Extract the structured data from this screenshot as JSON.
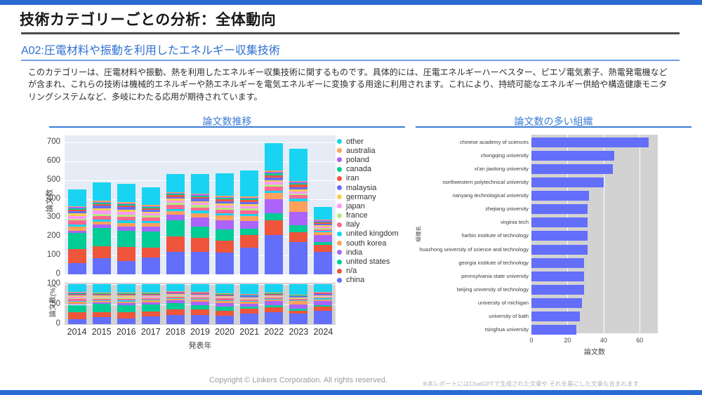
{
  "page": {
    "title": "技術カテゴリーごとの分析：全体動向",
    "subtitle": "A02:圧電材料や振動を利用したエネルギー収集技術",
    "description": "このカテゴリーは、圧電材料や振動、熱を利用したエネルギー収集技術に関するものです。具体的には、圧電エネルギーハーベスター、ピエゾ電気素子、熱電発電機などが含まれ、これらの技術は機械的エネルギーや熱エネルギーを電気エネルギーに変換する用途に利用されます。これにより、持続可能なエネルギー供給や構造健康モニタリングシステムなど、多岐にわたる応用が期待されています。",
    "footer_copyright": "Copyright © Linkers Corporation. All rights reserved.",
    "footer_note": "※本レポートにはChatGPTで生成された文章や それを基にした文章も含まれます",
    "accent_color": "#2a6ad2",
    "chart_title_color": "#3a7bd5"
  },
  "chart_data": [
    {
      "type": "bar",
      "stacked": true,
      "title": "論文数推移",
      "xlabel": "発表年",
      "ylabel": "論文数",
      "percent_ylabel": "論文数(%)",
      "ylim": [
        0,
        700
      ],
      "yticks": [
        0,
        100,
        200,
        300,
        400,
        500,
        600,
        700
      ],
      "percent_yticks": [
        0,
        50,
        100
      ],
      "plot_bg": "#e5ecf6",
      "percent_plot_bg": "#d2d2d2",
      "grid_color": "#ffffff",
      "categories": [
        "2014",
        "2015",
        "2016",
        "2017",
        "2018",
        "2019",
        "2020",
        "2021",
        "2022",
        "2023",
        "2024"
      ],
      "series_note": "stack order bottom to top; legend shows reverse order",
      "series": [
        {
          "name": "china",
          "color": "#636efa",
          "values": [
            58,
            87,
            70,
            88,
            120,
            118,
            115,
            142,
            210,
            170,
            120
          ]
        },
        {
          "name": "n/a",
          "color": "#EF553B",
          "values": [
            77,
            63,
            75,
            55,
            80,
            77,
            65,
            68,
            78,
            55,
            35
          ]
        },
        {
          "name": "united states",
          "color": "#00cc96",
          "values": [
            83,
            95,
            85,
            85,
            85,
            60,
            58,
            31,
            36,
            35,
            15
          ]
        },
        {
          "name": "india",
          "color": "#ab63fa",
          "values": [
            14,
            20,
            25,
            25,
            30,
            48,
            48,
            43,
            74,
            72,
            37
          ]
        },
        {
          "name": "south korea",
          "color": "#FFA15A",
          "values": [
            20,
            15,
            18,
            18,
            20,
            22,
            25,
            25,
            34,
            55,
            15
          ]
        },
        {
          "name": "united kingdom",
          "color": "#19d3f3",
          "values": [
            13,
            12,
            12,
            12,
            12,
            12,
            12,
            12,
            12,
            14,
            8
          ]
        },
        {
          "name": "italy",
          "color": "#FF6692",
          "values": [
            20,
            18,
            20,
            18,
            20,
            18,
            20,
            18,
            20,
            18,
            10
          ]
        },
        {
          "name": "france",
          "color": "#B6E880",
          "values": [
            10,
            12,
            12,
            10,
            12,
            12,
            10,
            10,
            12,
            10,
            6
          ]
        },
        {
          "name": "japan",
          "color": "#FF97FF",
          "values": [
            15,
            15,
            15,
            12,
            12,
            12,
            12,
            12,
            14,
            12,
            8
          ]
        },
        {
          "name": "germany",
          "color": "#FECB52",
          "values": [
            15,
            12,
            12,
            10,
            10,
            10,
            10,
            10,
            10,
            10,
            6
          ]
        },
        {
          "name": "malaysia",
          "color": "#636efa",
          "values": [
            10,
            15,
            12,
            10,
            10,
            12,
            12,
            12,
            14,
            12,
            8
          ]
        },
        {
          "name": "iran",
          "color": "#EF553B",
          "values": [
            7,
            8,
            8,
            7,
            8,
            8,
            10,
            10,
            12,
            12,
            8
          ]
        },
        {
          "name": "canada",
          "color": "#00cc96",
          "values": [
            8,
            8,
            8,
            7,
            8,
            8,
            8,
            8,
            9,
            8,
            5
          ]
        },
        {
          "name": "poland",
          "color": "#ab63fa",
          "values": [
            6,
            5,
            5,
            5,
            5,
            6,
            6,
            6,
            8,
            7,
            4
          ]
        },
        {
          "name": "australia",
          "color": "#FFA15A",
          "values": [
            6,
            5,
            5,
            5,
            5,
            5,
            6,
            6,
            8,
            7,
            4
          ]
        },
        {
          "name": "other",
          "color": "#19d3f3",
          "values": [
            90,
            99,
            99,
            94,
            96,
            105,
            118,
            139,
            144,
            171,
            70
          ]
        }
      ]
    },
    {
      "type": "bar",
      "orientation": "horizontal",
      "title": "論文数の多い組織",
      "xlabel": "論文数",
      "ylabel": "組織名",
      "xticks": [
        0,
        20,
        40,
        60
      ],
      "xlim": [
        0,
        70
      ],
      "bar_color": "#636efa",
      "plot_bg": "#d2d2d2",
      "grid_color": "#ffffff",
      "categories": [
        "chinese academy of sciences",
        "chongqing university",
        "xi'an jiaotong university",
        "northwestern polytechnical university",
        "nanyang technological university",
        "zhejiang university",
        "virginia tech",
        "harbin institute of technology",
        "huazhong university of science and technology",
        "georgia institute of technology",
        "pennsylvania state university",
        "beijing university of technology",
        "university of michigan",
        "university of bath",
        "tsinghua university"
      ],
      "values": [
        65,
        46,
        45,
        40,
        32,
        31,
        31,
        31,
        31,
        29,
        29,
        29,
        28,
        27,
        25
      ]
    }
  ]
}
